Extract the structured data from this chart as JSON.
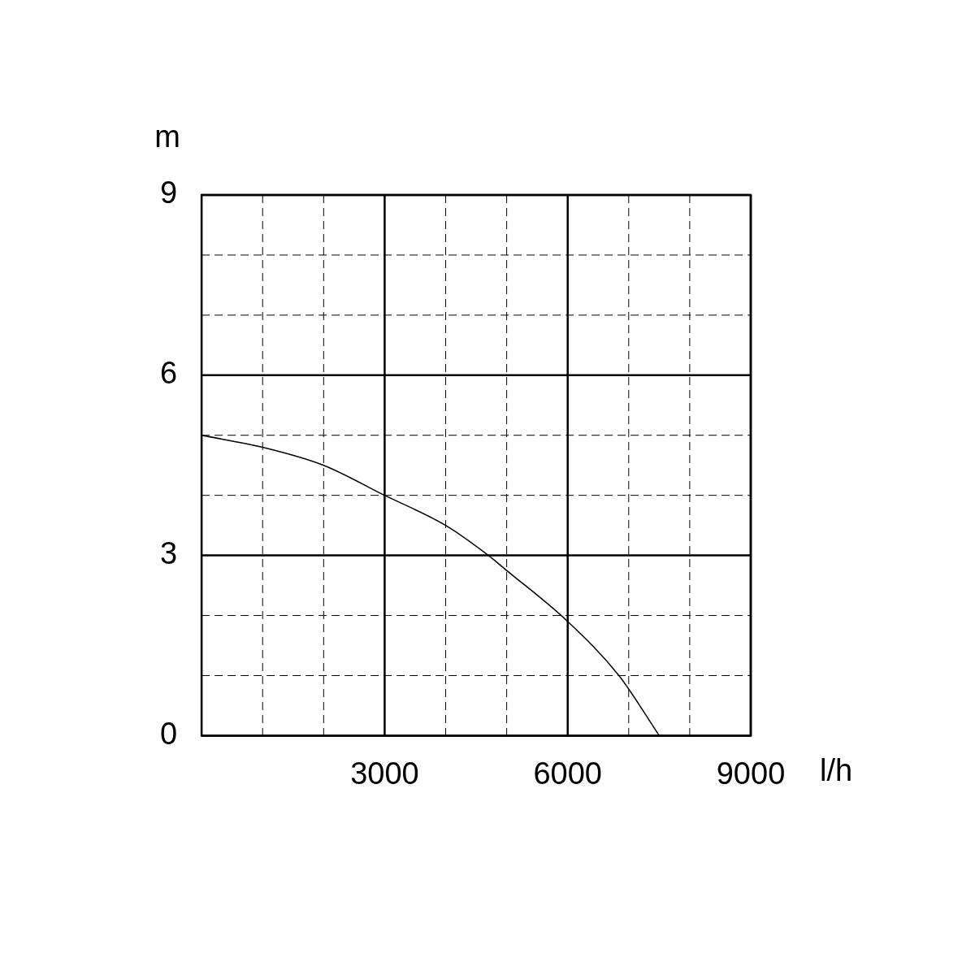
{
  "chart_data": {
    "type": "line",
    "xlabel": "l/h",
    "ylabel": "m",
    "x": [
      0,
      1000,
      2000,
      3000,
      4000,
      4700,
      5000,
      6000,
      6840,
      7500
    ],
    "series": [
      {
        "color": "#000000",
        "values": [
          5.0,
          4.8,
          4.5,
          4.0,
          3.5,
          3.0,
          2.75,
          1.9,
          1.0,
          0
        ]
      }
    ],
    "xlim": [
      0,
      9000
    ],
    "ylim": [
      0,
      9
    ],
    "xticks": [
      {
        "value": 0,
        "label": null
      },
      {
        "value": 1000,
        "label": null
      },
      {
        "value": 2000,
        "label": null
      },
      3000,
      {
        "value": 4000,
        "label": null
      },
      {
        "value": 5000,
        "label": null
      },
      6000,
      {
        "value": 7000,
        "label": null
      },
      {
        "value": 8000,
        "label": null
      },
      9000
    ],
    "yticks": [
      0,
      {
        "value": 1,
        "label": null
      },
      {
        "value": 2,
        "label": null
      },
      3,
      {
        "value": 4,
        "label": null
      },
      {
        "value": 5,
        "label": null
      },
      6,
      {
        "value": 7,
        "label": null
      },
      {
        "value": 8,
        "label": null
      },
      9
    ],
    "grid": true,
    "legend": false,
    "marker": "none",
    "line_style": "solid"
  }
}
